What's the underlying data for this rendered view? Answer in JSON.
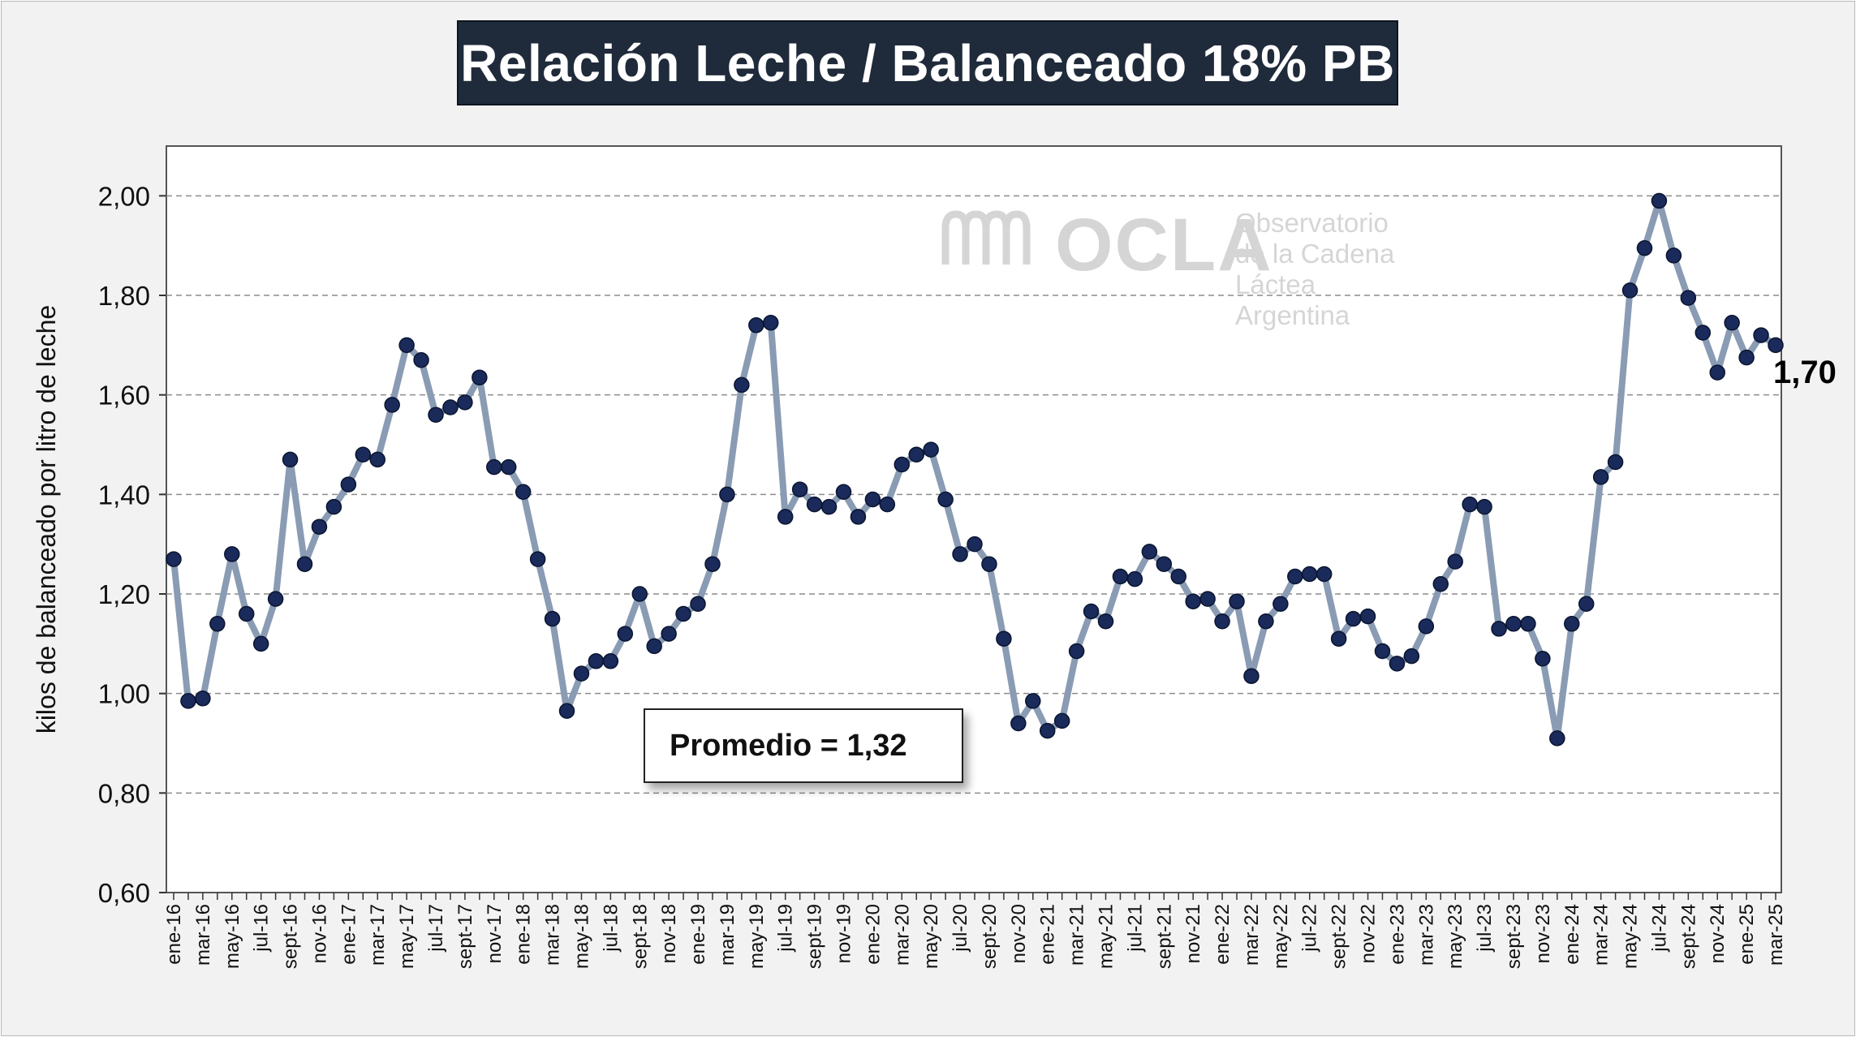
{
  "title": "Relación Leche / Balanceado 18% PB",
  "watermark": {
    "name": "OCLA",
    "line1": "Observatorio",
    "line2": "de la Cadena Láctea",
    "line3": "Argentina",
    "icon": "ocla-logo-icon"
  },
  "average_label": "Promedio = 1,32",
  "end_label": "1,70",
  "colors": {
    "line": "#8a9bb4",
    "marker": "#1a2a5a",
    "title_bg": "#1f2a3a",
    "grid": "#8c8c8c"
  },
  "chart_data": {
    "type": "line",
    "title": "Relación Leche / Balanceado 18% PB",
    "xlabel": "",
    "ylabel": "kilos de balanceado por litro de leche",
    "ylim": [
      0.6,
      2.1
    ],
    "yticks": [
      "0,60",
      "0,80",
      "1,00",
      "1,20",
      "1,40",
      "1,60",
      "1,80",
      "2,00"
    ],
    "grid": "horizontal dashed",
    "legend": "none",
    "x_tick_labels": [
      "ene-16",
      "mar-16",
      "may-16",
      "jul-16",
      "sept-16",
      "nov-16",
      "ene-17",
      "mar-17",
      "may-17",
      "jul-17",
      "sept-17",
      "nov-17",
      "ene-18",
      "mar-18",
      "may-18",
      "jul-18",
      "sept-18",
      "nov-18",
      "ene-19",
      "mar-19",
      "may-19",
      "jul-19",
      "sept-19",
      "nov-19",
      "ene-20",
      "mar-20",
      "may-20",
      "jul-20",
      "sept-20",
      "nov-20",
      "ene-21",
      "mar-21",
      "may-21",
      "jul-21",
      "sept-21",
      "nov-21",
      "ene-22",
      "mar-22",
      "may-22",
      "jul-22",
      "sept-22",
      "nov-22",
      "ene-23",
      "mar-23",
      "may-23",
      "jul-23",
      "sept-23",
      "nov-23",
      "ene-24",
      "mar-24",
      "may-24",
      "jul-24",
      "sept-24",
      "nov-24",
      "ene-25",
      "mar-25"
    ],
    "series": [
      {
        "values": [
          1.27,
          0.985,
          0.99,
          1.14,
          1.28,
          1.16,
          1.1,
          1.19,
          1.47,
          1.26,
          1.335,
          1.375,
          1.42,
          1.48,
          1.47,
          1.58,
          1.7,
          1.67,
          1.56,
          1.575,
          1.585,
          1.635,
          1.455,
          1.455,
          1.405,
          1.27,
          1.15,
          0.965,
          1.04,
          1.065,
          1.065,
          1.12,
          1.2,
          1.095,
          1.12,
          1.16,
          1.18,
          1.26,
          1.4,
          1.62,
          1.74,
          1.745,
          1.355,
          1.41,
          1.38,
          1.375,
          1.405,
          1.355,
          1.39,
          1.38,
          1.46,
          1.48,
          1.49,
          1.39,
          1.28,
          1.3,
          1.26,
          1.11,
          0.94,
          0.985,
          0.925,
          0.945,
          1.085,
          1.165,
          1.145,
          1.235,
          1.23,
          1.285,
          1.26,
          1.235,
          1.185,
          1.19,
          1.145,
          1.185,
          1.035,
          1.145,
          1.18,
          1.235,
          1.24,
          1.24,
          1.11,
          1.15,
          1.155,
          1.085,
          1.06,
          1.075,
          1.135,
          1.22,
          1.265,
          1.38,
          1.375,
          1.13,
          1.14,
          1.14,
          1.07,
          0.91,
          1.14,
          1.18,
          1.435,
          1.465,
          1.81,
          1.895,
          1.99,
          1.88,
          1.795,
          1.725,
          1.645,
          1.745,
          1.675,
          1.72,
          1.7
        ]
      }
    ]
  }
}
